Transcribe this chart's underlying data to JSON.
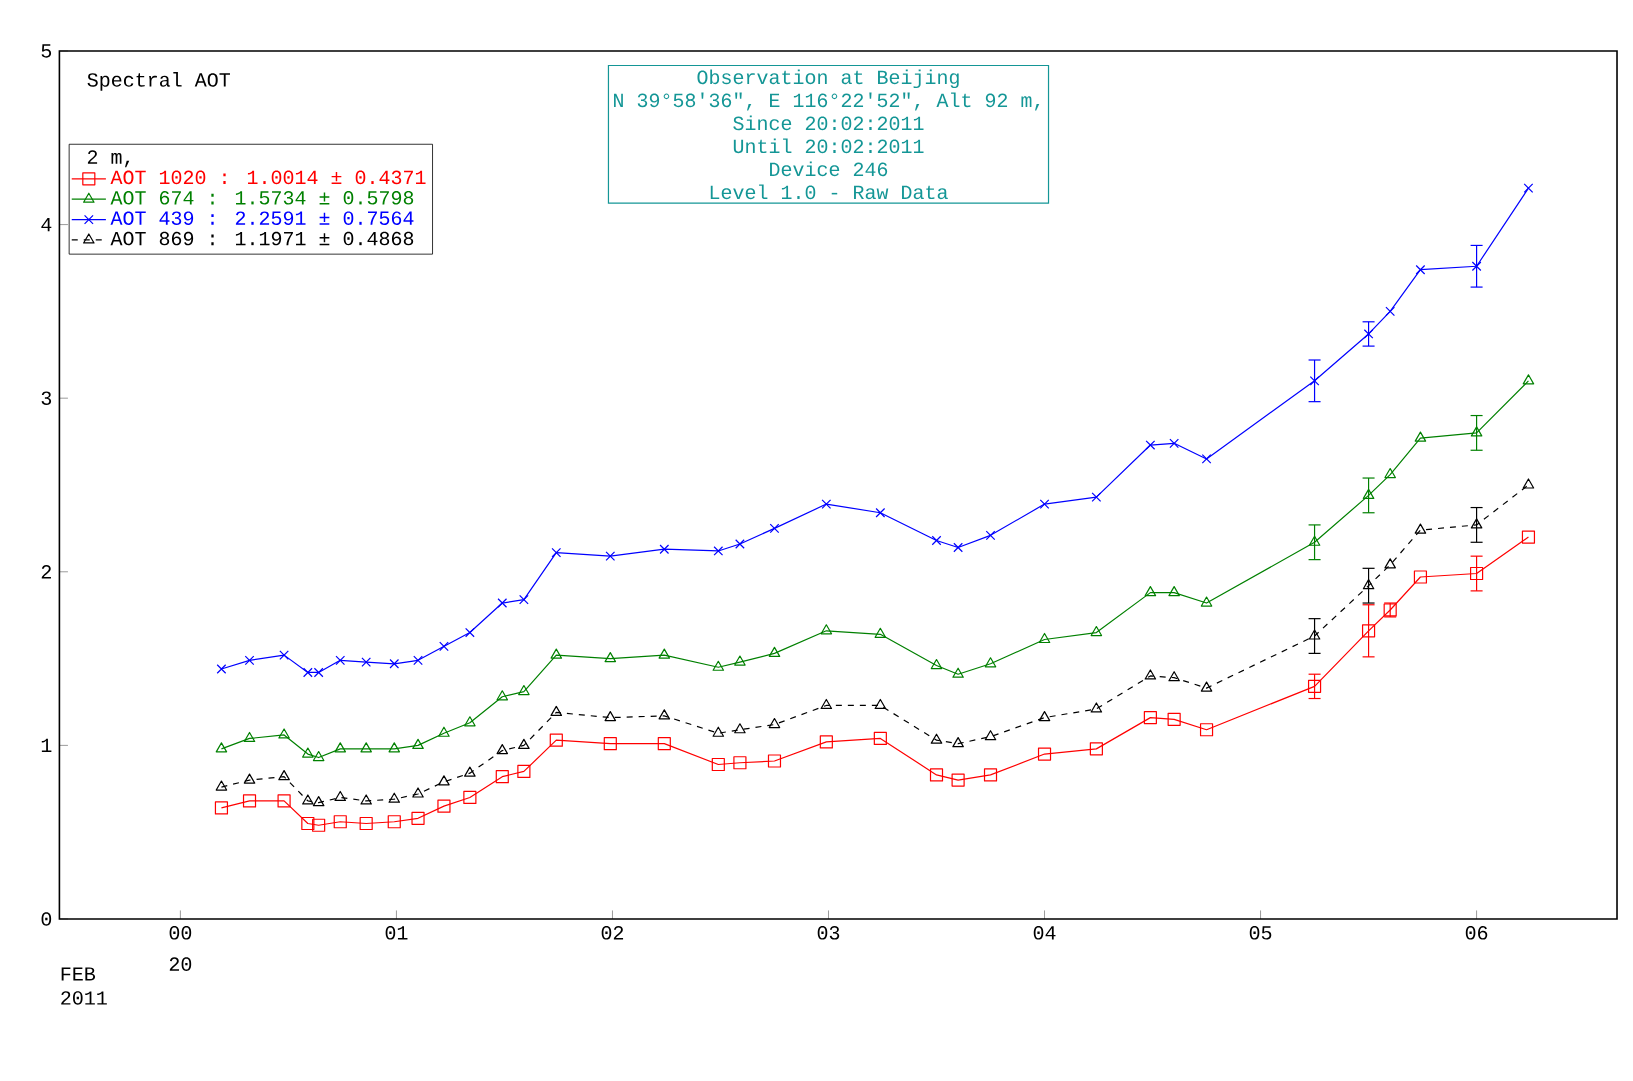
{
  "chart_data": {
    "type": "line",
    "title": "Spectral AOT",
    "legend_title": "2 m,",
    "annotations": [
      "Observation at Beijing",
      "N 39°58'36\", E 116°22'52\", Alt 92 m,",
      "Since 20:02:2011",
      "Until 20:02:2011",
      "Device 246",
      "Level 1.0 - Raw Data",
      "20",
      "FEB",
      "2011"
    ],
    "xlim": [
      -0.56,
      6.65
    ],
    "ylim": [
      0,
      5
    ],
    "xticks": [
      {
        "value": 0,
        "label": "00"
      },
      {
        "value": 1,
        "label": "01"
      },
      {
        "value": 2,
        "label": "02"
      },
      {
        "value": 3,
        "label": "03"
      },
      {
        "value": 4,
        "label": "04"
      },
      {
        "value": 5,
        "label": "05"
      },
      {
        "value": 6,
        "label": "06"
      }
    ],
    "yticks": [
      0,
      1,
      2,
      3,
      4,
      5
    ],
    "grid": false,
    "legend": "top left",
    "x": [
      0.19,
      0.32,
      0.48,
      0.59,
      0.64,
      0.74,
      0.86,
      0.99,
      1.1,
      1.22,
      1.34,
      1.49,
      1.59,
      1.74,
      1.99,
      2.24,
      2.49,
      2.59,
      2.75,
      2.99,
      3.24,
      3.5,
      3.6,
      3.75,
      4.0,
      4.24,
      4.49,
      4.6,
      4.75,
      5.25,
      5.5,
      5.6,
      5.74,
      6.0,
      6.24
    ],
    "series": [
      {
        "name": "AOT 1020 : 1.0014 ± 0.4371",
        "color": "#ff0000",
        "marker": "square",
        "line_style": "solid",
        "values": [
          0.64,
          0.68,
          0.68,
          0.55,
          0.54,
          0.56,
          0.55,
          0.56,
          0.58,
          0.65,
          0.7,
          0.82,
          0.85,
          1.03,
          1.01,
          1.01,
          0.89,
          0.9,
          0.91,
          1.02,
          1.04,
          0.83,
          0.8,
          0.83,
          0.95,
          0.98,
          1.16,
          1.15,
          1.09,
          1.34,
          1.66,
          1.78,
          1.97,
          1.99,
          2.2
        ],
        "errors": [
          null,
          null,
          null,
          null,
          null,
          null,
          null,
          null,
          null,
          null,
          null,
          null,
          null,
          null,
          null,
          null,
          null,
          null,
          null,
          null,
          null,
          null,
          null,
          null,
          null,
          null,
          null,
          null,
          null,
          0.07,
          0.15,
          0.04,
          null,
          0.1,
          null
        ]
      },
      {
        "name": "AOT 674 : 1.5734 ± 0.5798",
        "color": "#008000",
        "marker": "triangle",
        "line_style": "solid",
        "values": [
          0.98,
          1.04,
          1.06,
          0.95,
          0.93,
          0.98,
          0.98,
          0.98,
          1.0,
          1.07,
          1.13,
          1.28,
          1.31,
          1.52,
          1.5,
          1.52,
          1.45,
          1.48,
          1.53,
          1.66,
          1.64,
          1.46,
          1.41,
          1.47,
          1.61,
          1.65,
          1.88,
          1.88,
          1.82,
          2.17,
          2.44,
          2.56,
          2.77,
          2.8,
          3.1
        ],
        "errors": [
          null,
          null,
          null,
          null,
          null,
          null,
          null,
          null,
          null,
          null,
          null,
          null,
          null,
          null,
          null,
          null,
          null,
          null,
          null,
          null,
          null,
          null,
          null,
          null,
          null,
          null,
          null,
          null,
          null,
          0.1,
          0.1,
          null,
          null,
          0.1,
          null
        ]
      },
      {
        "name": "AOT 439 : 2.2591 ± 0.7564",
        "color": "#0000ff",
        "marker": "cross",
        "line_style": "solid",
        "values": [
          1.44,
          1.49,
          1.52,
          1.42,
          1.42,
          1.49,
          1.48,
          1.47,
          1.49,
          1.57,
          1.65,
          1.82,
          1.84,
          2.11,
          2.09,
          2.13,
          2.12,
          2.16,
          2.25,
          2.39,
          2.34,
          2.18,
          2.14,
          2.21,
          2.39,
          2.43,
          2.73,
          2.74,
          2.65,
          3.1,
          3.37,
          3.5,
          3.74,
          3.76,
          4.21
        ],
        "errors": [
          null,
          null,
          null,
          null,
          null,
          null,
          null,
          null,
          null,
          null,
          null,
          null,
          null,
          null,
          null,
          null,
          null,
          null,
          null,
          null,
          null,
          null,
          null,
          null,
          null,
          null,
          null,
          null,
          null,
          0.12,
          0.07,
          null,
          null,
          0.12,
          null
        ]
      },
      {
        "name": "AOT 869 : 1.1971 ± 0.4868",
        "color": "#000000",
        "marker": "triangle",
        "line_style": "dashed",
        "values": [
          0.76,
          0.8,
          0.82,
          0.68,
          0.67,
          0.7,
          0.68,
          0.69,
          0.72,
          0.79,
          0.84,
          0.97,
          1.0,
          1.19,
          1.16,
          1.17,
          1.07,
          1.09,
          1.12,
          1.23,
          1.23,
          1.03,
          1.01,
          1.05,
          1.16,
          1.21,
          1.4,
          1.39,
          1.33,
          1.63,
          1.92,
          2.04,
          2.24,
          2.27,
          2.5
        ],
        "errors": [
          null,
          null,
          null,
          null,
          null,
          null,
          null,
          null,
          null,
          null,
          null,
          null,
          null,
          null,
          null,
          null,
          null,
          null,
          null,
          null,
          null,
          null,
          null,
          null,
          null,
          null,
          null,
          null,
          null,
          0.1,
          0.1,
          null,
          null,
          0.1,
          null
        ]
      }
    ]
  }
}
